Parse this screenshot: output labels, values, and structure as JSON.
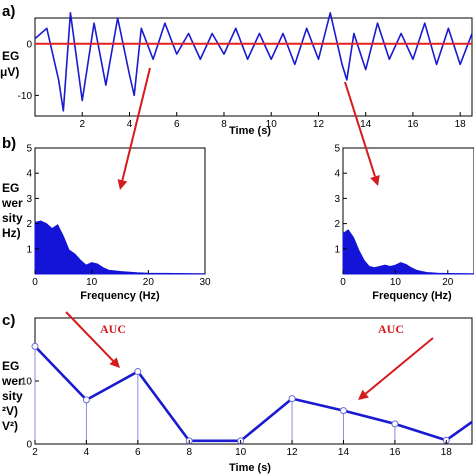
{
  "panels": {
    "a": {
      "label": "a)",
      "ylabel_lines": [
        "EG",
        "μV)"
      ],
      "xlabel": "Time (s)"
    },
    "b": {
      "label": "b)",
      "ylabel_lines": [
        "EG",
        "wer",
        "sity",
        "Hz)"
      ],
      "xlabel": "Frequency (Hz)"
    },
    "c": {
      "label": "c)",
      "ylabel_lines": [
        "EG",
        "wer",
        "sity",
        "²V)",
        "V²)"
      ],
      "xlabel": "Time (s)",
      "auc_labels": [
        "AUC",
        "AUC"
      ]
    }
  },
  "colors": {
    "signal": "#1a1ad0",
    "mean": "#e52020",
    "arrow": "#d41c1c",
    "fill": "#1414d8"
  },
  "chart_data": [
    {
      "type": "line",
      "panel": "a",
      "xlim": [
        0,
        18.5
      ],
      "ylim": [
        -14,
        5
      ],
      "xticks": [
        2,
        4,
        6,
        8,
        10,
        12,
        14,
        16,
        18
      ],
      "yticks": [
        0,
        -10
      ],
      "xlabel": "Time (s)",
      "series": [
        {
          "style": "eeg",
          "x": [
            0,
            0.5,
            1,
            1.2,
            1.5,
            2,
            2.5,
            3,
            3.5,
            4,
            4.2,
            4.5,
            5,
            5.5,
            6,
            6.5,
            7,
            7.5,
            8,
            8.5,
            9,
            9.5,
            10,
            10.5,
            11,
            11.5,
            12,
            12.5,
            13,
            13.2,
            13.5,
            14,
            14.5,
            15,
            15.5,
            16,
            16.5,
            17,
            17.5,
            18,
            18.5
          ],
          "y": [
            1,
            3,
            -7,
            -13,
            6,
            -11,
            4,
            -8,
            5,
            -6,
            -10,
            3,
            -3,
            4,
            -2,
            2,
            -3,
            2,
            -2,
            3,
            -3,
            2,
            -3,
            2,
            -4,
            3,
            -3,
            6,
            -4,
            -7,
            2,
            -5,
            4,
            -3,
            2,
            -3,
            4,
            -4,
            3,
            -4,
            2
          ]
        },
        {
          "style": "mean",
          "x": [
            0,
            18.5
          ],
          "y": [
            0,
            0
          ]
        }
      ]
    },
    {
      "type": "area",
      "panel": "b-left",
      "xlim": [
        0,
        30
      ],
      "ylim": [
        0,
        5
      ],
      "xticks": [
        0,
        10,
        20,
        30
      ],
      "yticks": [
        1,
        2,
        3,
        4,
        5
      ],
      "xlabel": "Frequency (Hz)",
      "x": [
        0,
        1,
        2,
        3,
        4,
        5,
        6,
        7,
        8,
        9,
        10,
        11,
        12,
        13,
        15,
        18,
        20,
        25,
        30
      ],
      "y": [
        2.05,
        2.1,
        2.0,
        1.8,
        1.95,
        1.5,
        0.95,
        0.8,
        0.55,
        0.35,
        0.45,
        0.4,
        0.25,
        0.15,
        0.1,
        0.05,
        0.03,
        0.02,
        0.01
      ]
    },
    {
      "type": "area",
      "panel": "b-right",
      "xlim": [
        0,
        25
      ],
      "ylim": [
        0,
        5
      ],
      "xticks": [
        0,
        10,
        20
      ],
      "yticks": [
        1,
        2,
        3,
        4,
        5
      ],
      "xlabel": "Frequency (Hz)",
      "x": [
        0,
        1,
        2,
        3,
        4,
        5,
        6,
        7,
        8,
        9,
        10,
        11,
        12,
        13,
        14,
        15,
        16,
        18,
        20,
        25
      ],
      "y": [
        1.6,
        1.75,
        1.45,
        0.95,
        0.55,
        0.3,
        0.25,
        0.3,
        0.35,
        0.3,
        0.35,
        0.45,
        0.38,
        0.25,
        0.15,
        0.1,
        0.06,
        0.03,
        0.02,
        0.01
      ]
    },
    {
      "type": "line",
      "panel": "c",
      "xlim": [
        2,
        19
      ],
      "ylim": [
        0,
        20
      ],
      "xticks": [
        2,
        4,
        6,
        8,
        10,
        12,
        14,
        16,
        18
      ],
      "yticks": [
        0,
        10
      ],
      "xlabel": "Time (s)",
      "x": [
        2,
        4,
        6,
        8,
        10,
        12,
        14,
        16,
        18,
        19
      ],
      "y": [
        15.5,
        7,
        11.5,
        0.5,
        0.5,
        7.2,
        5.3,
        3.2,
        0.6,
        3.5
      ]
    }
  ]
}
